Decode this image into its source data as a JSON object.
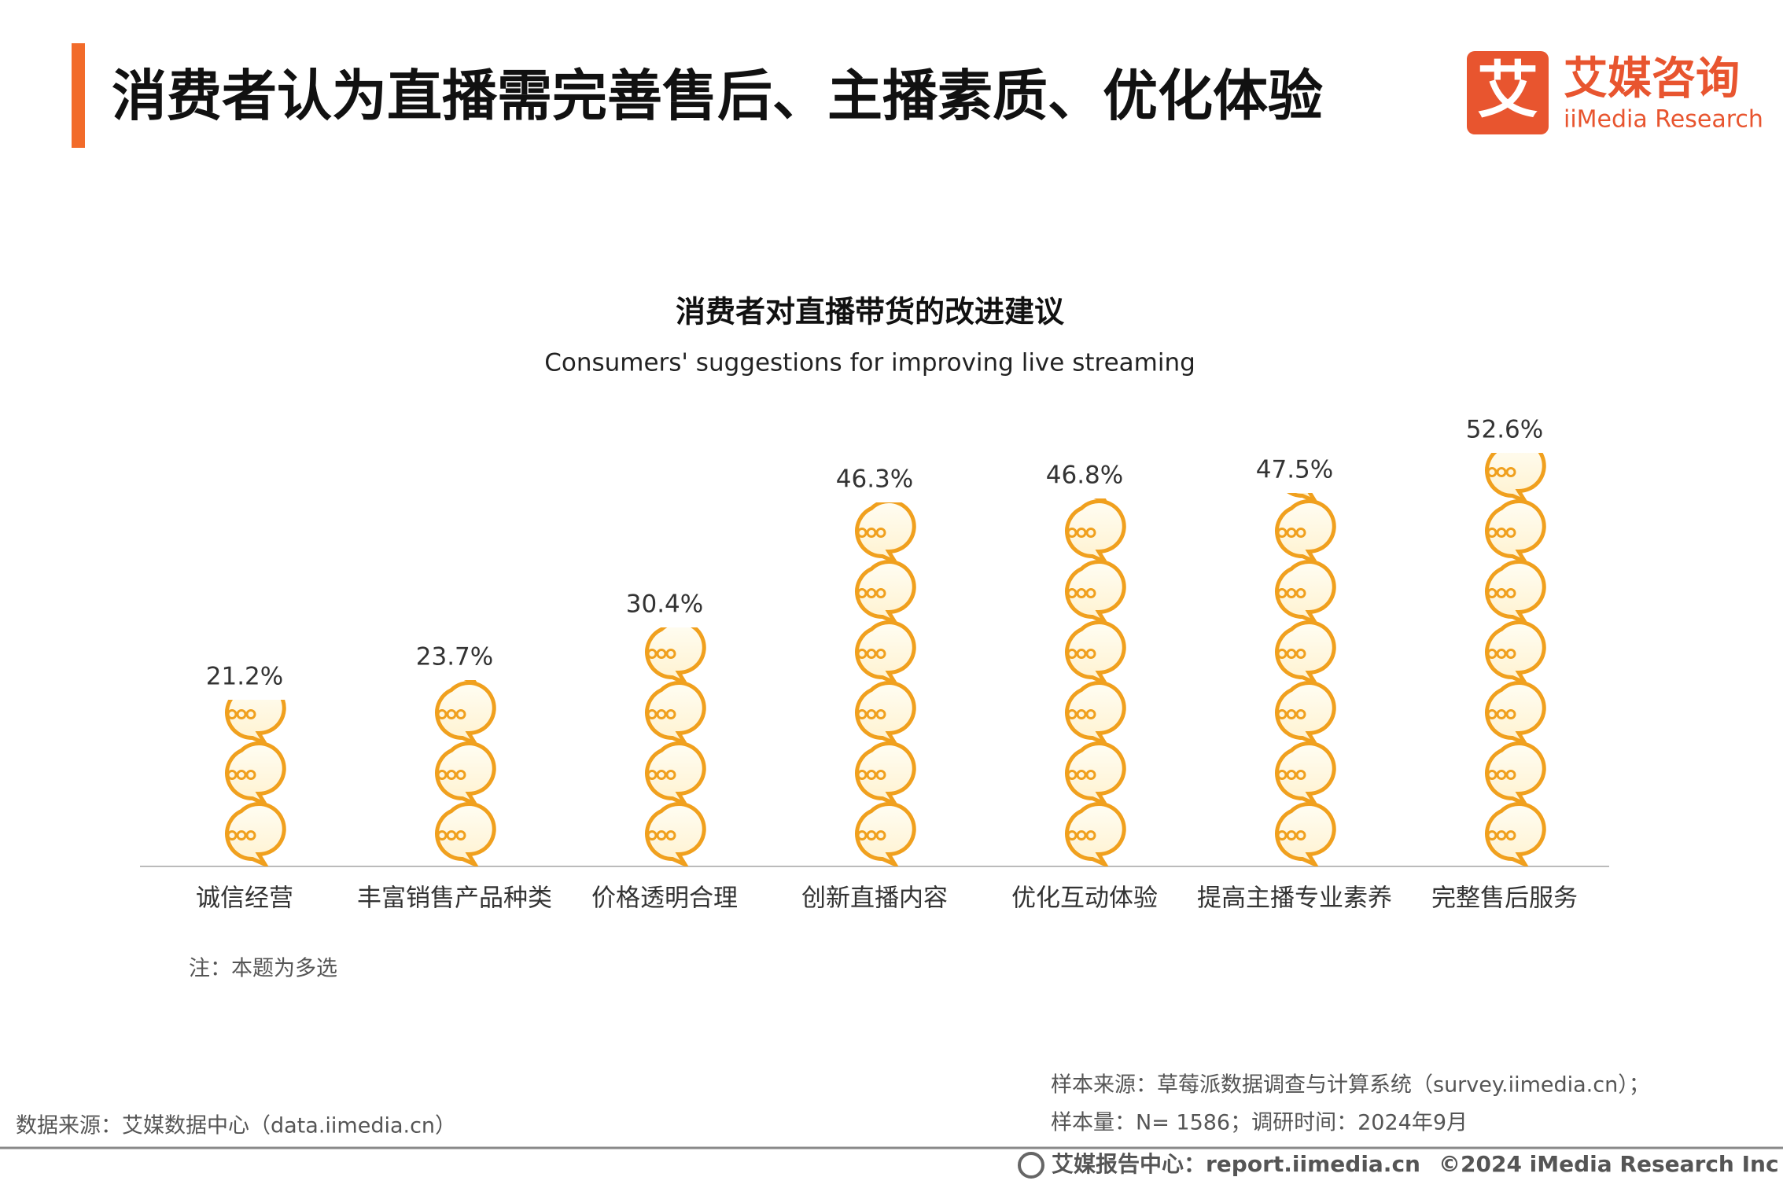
{
  "header": {
    "title": "消费者认为直播需完善售后、主播素质、优化体验",
    "logo_cn": "艾媒咨询",
    "logo_en": "iiMedia Research",
    "logo_mark": "艾"
  },
  "chart_data": {
    "type": "pictograph",
    "title": "消费者对直播带货的改进建议",
    "subtitle": "Consumers' suggestions for improving live streaming",
    "categories": [
      "诚信经营",
      "丰富销售产品种类",
      "价格透明合理",
      "创新直播内容",
      "优化互动体验",
      "提高主播专业素养",
      "完整售后服务"
    ],
    "values": [
      21.2,
      23.7,
      30.4,
      46.3,
      46.8,
      47.5,
      52.6
    ],
    "value_labels": [
      "21.2%",
      "23.7%",
      "30.4%",
      "46.3%",
      "46.8%",
      "47.5%",
      "52.6%"
    ],
    "color": "#f5a623",
    "note": "注：本题为多选"
  },
  "sources": {
    "left": "数据来源：艾媒数据中心（data.iimedia.cn）",
    "right": [
      "样本来源：草莓派数据调查与计算系统（survey.iimedia.cn）；",
      "样本量：N= 1586；调研时间：2024年9月"
    ]
  },
  "footer": {
    "report": "艾媒报告中心：report.iimedia.cn",
    "copyright": "©2024  iMedia Research  Inc"
  }
}
